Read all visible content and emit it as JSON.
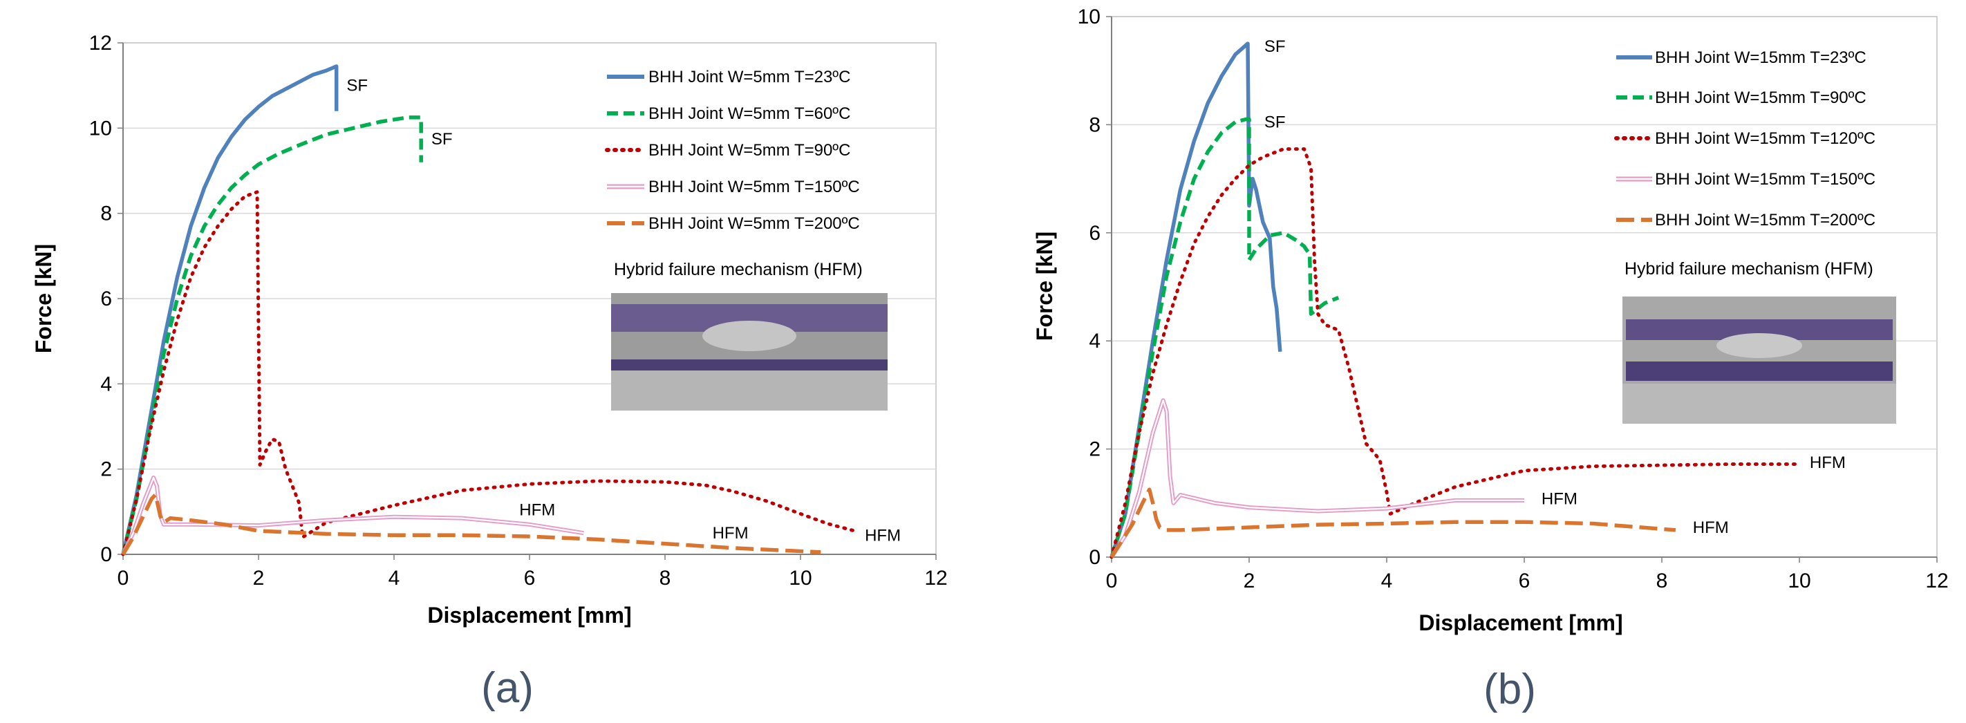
{
  "chart_data": [
    {
      "type": "line",
      "panel_label": "(a)",
      "xlabel": "Displacement [mm]",
      "ylabel": "Force [kN]",
      "xlim": [
        0,
        12
      ],
      "ylim": [
        0,
        12
      ],
      "xticks": [
        0,
        2,
        4,
        6,
        8,
        10,
        12
      ],
      "yticks": [
        0,
        2,
        4,
        6,
        8,
        10,
        12
      ],
      "grid": "horizontal",
      "legend_position": "top-right",
      "series": [
        {
          "name": "BHH Joint W=5mm T=23ºC",
          "color": "#4F81BD",
          "style": "solid",
          "x": [
            0,
            0.2,
            0.4,
            0.6,
            0.8,
            1.0,
            1.2,
            1.4,
            1.6,
            1.8,
            2.0,
            2.2,
            2.5,
            2.8,
            3.0,
            3.15,
            3.15
          ],
          "y": [
            0,
            1.4,
            3.2,
            5.0,
            6.5,
            7.7,
            8.6,
            9.3,
            9.8,
            10.2,
            10.5,
            10.75,
            11.0,
            11.25,
            11.35,
            11.45,
            10.4
          ]
        },
        {
          "name": "BHH Joint W=5mm T=60ºC",
          "color": "#00B050",
          "style": "dashed",
          "x": [
            0,
            0.2,
            0.4,
            0.6,
            0.8,
            1.0,
            1.2,
            1.4,
            1.6,
            1.8,
            2.0,
            2.3,
            2.6,
            3.0,
            3.4,
            3.8,
            4.2,
            4.4,
            4.4
          ],
          "y": [
            0,
            1.3,
            3.0,
            4.7,
            6.0,
            7.0,
            7.7,
            8.2,
            8.6,
            8.9,
            9.15,
            9.4,
            9.6,
            9.85,
            10.0,
            10.15,
            10.25,
            10.25,
            9.2
          ]
        },
        {
          "name": "BHH Joint W=5mm T=90ºC",
          "color": "#C00000",
          "style": "dotted",
          "x": [
            0,
            0.2,
            0.4,
            0.6,
            0.8,
            1.0,
            1.2,
            1.4,
            1.6,
            1.8,
            1.98,
            2.02,
            2.1,
            2.2,
            2.3,
            2.4,
            2.5,
            2.6,
            2.65,
            3.0,
            4.0,
            5.0,
            6.0,
            7.0,
            8.0,
            8.6,
            9.0,
            9.5,
            10.0,
            10.4,
            10.8
          ],
          "y": [
            0,
            1.3,
            2.9,
            4.3,
            5.5,
            6.5,
            7.2,
            7.7,
            8.1,
            8.4,
            8.5,
            2.1,
            2.4,
            2.7,
            2.65,
            2.0,
            1.6,
            1.2,
            0.4,
            0.75,
            1.15,
            1.5,
            1.65,
            1.72,
            1.7,
            1.62,
            1.48,
            1.25,
            0.95,
            0.72,
            0.55
          ]
        },
        {
          "name": "BHH Joint W=5mm T=150ºC",
          "color": "#E69AC7",
          "style": "double",
          "x": [
            0,
            0.15,
            0.3,
            0.45,
            0.5,
            0.55,
            0.6,
            1.0,
            2.0,
            3.0,
            4.0,
            5.0,
            6.0,
            6.8
          ],
          "y": [
            0,
            0.5,
            1.2,
            1.8,
            1.6,
            0.9,
            0.7,
            0.7,
            0.68,
            0.8,
            0.88,
            0.85,
            0.7,
            0.5
          ]
        },
        {
          "name": "BHH Joint W=5mm T=200ºC",
          "color": "#D9752E",
          "style": "longdash",
          "x": [
            0,
            0.15,
            0.3,
            0.42,
            0.48,
            0.55,
            0.6,
            0.7,
            1.0,
            1.5,
            2.0,
            3.0,
            4.0,
            5.0,
            6.0,
            7.0,
            8.0,
            9.0,
            10.3
          ],
          "y": [
            0,
            0.4,
            0.9,
            1.3,
            1.4,
            0.9,
            0.75,
            0.85,
            0.8,
            0.7,
            0.55,
            0.48,
            0.45,
            0.45,
            0.42,
            0.35,
            0.25,
            0.15,
            0.05
          ]
        }
      ],
      "annotations": [
        {
          "text": "SF",
          "x": 3.3,
          "y": 11.0
        },
        {
          "text": "SF",
          "x": 4.55,
          "y": 9.75
        },
        {
          "text": "HFM",
          "x": 5.85,
          "y": 1.05
        },
        {
          "text": "HFM",
          "x": 8.7,
          "y": 0.5
        },
        {
          "text": "HFM",
          "x": 10.95,
          "y": 0.45
        }
      ],
      "photo": {
        "caption": "Hybrid failure mechanism (HFM)"
      }
    },
    {
      "type": "line",
      "panel_label": "(b)",
      "xlabel": "Displacement [mm]",
      "ylabel": "Force [kN]",
      "xlim": [
        0,
        12
      ],
      "ylim": [
        0,
        10
      ],
      "xticks": [
        0,
        2,
        4,
        6,
        8,
        10,
        12
      ],
      "yticks": [
        0,
        2,
        4,
        6,
        8,
        10
      ],
      "grid": "horizontal",
      "legend_position": "top-right",
      "series": [
        {
          "name": "BHH Joint W=15mm T=23ºC",
          "color": "#4F81BD",
          "style": "solid",
          "x": [
            0,
            0.2,
            0.4,
            0.6,
            0.8,
            1.0,
            1.2,
            1.4,
            1.6,
            1.8,
            1.98,
            2.0,
            2.05,
            2.1,
            2.15,
            2.2,
            2.3,
            2.35,
            2.4,
            2.45
          ],
          "y": [
            0,
            0.8,
            2.4,
            4.0,
            5.5,
            6.8,
            7.7,
            8.4,
            8.9,
            9.3,
            9.5,
            6.5,
            7.0,
            6.8,
            6.5,
            6.2,
            5.9,
            5.0,
            4.6,
            3.8
          ]
        },
        {
          "name": "BHH Joint W=15mm T=90ºC",
          "color": "#00B050",
          "style": "dashed",
          "x": [
            0,
            0.2,
            0.4,
            0.6,
            0.8,
            1.0,
            1.2,
            1.4,
            1.6,
            1.8,
            1.95,
            2.0,
            2.0,
            2.1,
            2.3,
            2.5,
            2.7,
            2.8,
            2.88,
            2.9,
            3.0,
            3.1,
            3.3
          ],
          "y": [
            0,
            0.8,
            2.3,
            3.8,
            5.2,
            6.2,
            7.0,
            7.5,
            7.85,
            8.05,
            8.1,
            8.1,
            5.5,
            5.7,
            5.95,
            6.0,
            5.85,
            5.75,
            5.6,
            4.5,
            4.6,
            4.7,
            4.8
          ]
        },
        {
          "name": "BHH Joint W=15mm T=120ºC",
          "color": "#C00000",
          "style": "dotted",
          "x": [
            0,
            0.2,
            0.4,
            0.6,
            0.8,
            1.0,
            1.2,
            1.4,
            1.6,
            1.8,
            2.0,
            2.2,
            2.5,
            2.8,
            2.9,
            2.95,
            3.0,
            3.1,
            3.3,
            3.45,
            3.7,
            3.9,
            4.0,
            4.05,
            4.5,
            5.0,
            6.0,
            7.0,
            8.0,
            9.0,
            10.0
          ],
          "y": [
            0,
            1.0,
            2.3,
            3.4,
            4.3,
            5.1,
            5.8,
            6.3,
            6.7,
            7.0,
            7.25,
            7.4,
            7.55,
            7.55,
            7.2,
            5.5,
            4.5,
            4.3,
            4.2,
            3.5,
            2.1,
            1.8,
            1.2,
            0.8,
            1.05,
            1.3,
            1.6,
            1.68,
            1.7,
            1.72,
            1.72
          ]
        },
        {
          "name": "BHH Joint W=15mm T=150ºC",
          "color": "#E69AC7",
          "style": "double",
          "x": [
            0,
            0.2,
            0.4,
            0.6,
            0.75,
            0.8,
            0.85,
            0.9,
            1.0,
            1.5,
            2.0,
            3.0,
            4.0,
            5.0,
            6.0
          ],
          "y": [
            0,
            0.4,
            1.2,
            2.3,
            2.9,
            2.7,
            1.5,
            1.0,
            1.15,
            1.0,
            0.92,
            0.85,
            0.9,
            1.05,
            1.05
          ]
        },
        {
          "name": "BHH Joint W=15mm T=200ºC",
          "color": "#D9752E",
          "style": "longdash",
          "x": [
            0,
            0.15,
            0.3,
            0.45,
            0.55,
            0.6,
            0.65,
            0.7,
            0.8,
            1.0,
            2.0,
            3.0,
            4.0,
            5.0,
            6.0,
            7.0,
            8.2
          ],
          "y": [
            0,
            0.3,
            0.6,
            1.0,
            1.25,
            1.0,
            0.7,
            0.55,
            0.5,
            0.5,
            0.55,
            0.6,
            0.62,
            0.65,
            0.65,
            0.62,
            0.5
          ]
        }
      ],
      "annotations": [
        {
          "text": "SF",
          "x": 2.22,
          "y": 9.45
        },
        {
          "text": "SF",
          "x": 2.22,
          "y": 8.05
        },
        {
          "text": "HFM",
          "x": 10.15,
          "y": 1.75
        },
        {
          "text": "HFM",
          "x": 6.25,
          "y": 1.08
        },
        {
          "text": "HFM",
          "x": 8.45,
          "y": 0.55
        }
      ],
      "photo": {
        "caption": "Hybrid failure mechanism (HFM)"
      }
    }
  ]
}
